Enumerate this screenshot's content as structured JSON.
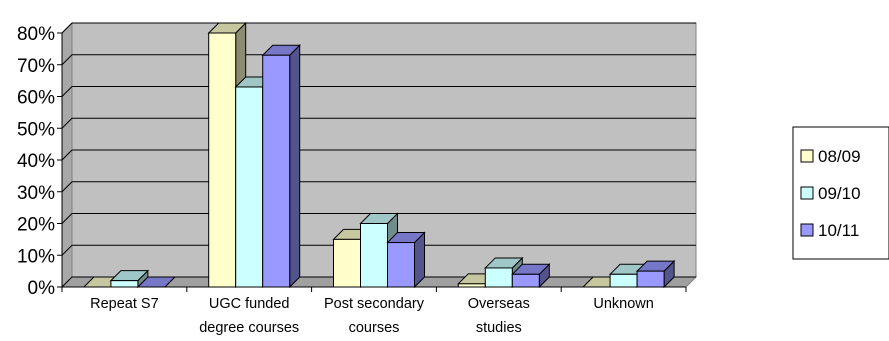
{
  "chart_data": {
    "type": "bar",
    "style": "3d-clustered-column",
    "categories": [
      [
        "Repeat S7"
      ],
      [
        "UGC funded",
        "degree courses"
      ],
      [
        "Post secondary",
        "courses"
      ],
      [
        "Overseas",
        "studies"
      ],
      [
        "Unknown"
      ]
    ],
    "series": [
      {
        "name": "08/09",
        "values": [
          0,
          80,
          15,
          1,
          0
        ],
        "color": "#ffffcc"
      },
      {
        "name": "09/10",
        "values": [
          2,
          63,
          20,
          6,
          4
        ],
        "color": "#ccffff"
      },
      {
        "name": "10/11",
        "values": [
          0,
          73,
          14,
          4,
          5
        ],
        "color": "#9999ff"
      }
    ],
    "y_ticks": [
      "0%",
      "10%",
      "20%",
      "30%",
      "40%",
      "50%",
      "60%",
      "70%",
      "80%"
    ],
    "ylim": [
      0,
      80
    ],
    "y_unit": "%",
    "grid": true,
    "plot_background": "#c0c0c0",
    "legend_position": "right"
  }
}
